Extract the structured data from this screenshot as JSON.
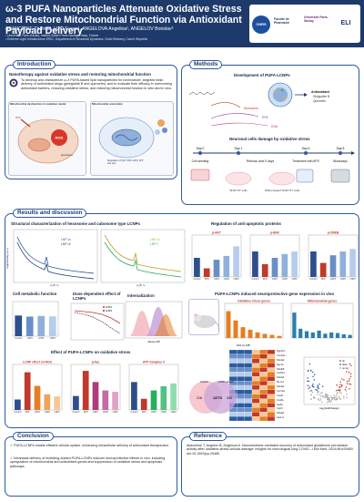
{
  "header": {
    "title": "ω-3 PUFA Nanoparticles Attenuate Oxidative Stress and Restore Mitochondrial Function via Antioxidant Payload Delivery",
    "authors": "AKANCHISE Thelma¹, LUO Fucen¹, ANGELOVA Angelina¹, ANGELOV Borislav²",
    "affiliation_1": "¹ Université Paris-Saclay, Institut Galien Paris-Saclay, Orsay, France",
    "affiliation_2": "² Extreme Light Infrastructure ERIC, Department of Structural Dynamics, Dolní Břežany, Czech Republic",
    "logos": [
      "CNRS",
      "Faculté de Pharmacie",
      "Université Paris-Saclay",
      "ELI"
    ]
  },
  "introduction": {
    "heading": "Introduction",
    "subheading": "Nanotherapy against oxidative stress and restoring mitochondrial function",
    "body": "To develop and characterize ω-3 PUFA-based lipid nanoparticles for noninvasive, targeted brain delivery of antioxidant drugs (ginkgolide B and quercetin), and to evaluate their efficacy in overcoming antioxidant barriers, reducing oxidative stress, and restoring mitochondrial function in vitro and in vivo.",
    "panel_left": "Mitochondria dysfunction in oxidative model",
    "panel_right": "Mitochondria restoration",
    "labels": [
      "ROS",
      "apoptosis",
      "Regulation of CAT, SOD, GPX, ATP and Gpx",
      "6PS"
    ]
  },
  "methods": {
    "heading": "Methods",
    "dev_title": "Development of PUFA-LCNPs",
    "components": [
      "Monoolein",
      "EPA",
      "DHA"
    ],
    "payload": [
      "Antioxidant",
      "Ginkgolide B",
      "Quercetin"
    ],
    "stress_title": "Neuronal cells damage by oxidative stress",
    "timeline_days": [
      "Day 0",
      "Day 1",
      "Day 6",
      "Day 8"
    ],
    "steps": [
      "Cell seeding",
      "Retinoic acid 5 days",
      "Treatment with 6PS",
      "Bioassays"
    ],
    "cell_labels": [
      "SHSY-5Y cells",
      "Differentiated SHSY-5Y cells"
    ]
  },
  "results": {
    "heading": "Results and discussion",
    "saxs_title": "Structural characterization of hexosome and cubosome type LCNPs",
    "saxs_legend_a": [
      "LNP 1a",
      "LNP 1b"
    ],
    "saxs_legend_b": [
      "LNP 1c",
      "LNP 2"
    ],
    "saxs_xlabel": "q (Å⁻¹)",
    "saxs_ylabel": "Log(Intensity) (a.u.)",
    "apoptotic_title": "Regulation of anti-apoptotic proteins",
    "apoptotic_panels": [
      "p-AKT",
      "p-ERK",
      "p-CREB"
    ],
    "apoptotic_ylabels": [
      "Relative AKT protein concentration",
      "Relative ERK protein concentration",
      "Relative CREB protein concentration"
    ],
    "metabolic_title": "Cell metabolic function",
    "metabolic_ylabel": "Cellular viability (%)",
    "dose_title": "Dose dependent effect of LCNPs",
    "dose_legend": [
      "LNP1",
      "LNP2"
    ],
    "dose_ylabel": "Cellular viability (%)",
    "internal_title": "Internalization",
    "internal_xlabel": "Alexa-LNP",
    "internal_ylabel": "Events",
    "gene_title": "PUFA-LCNPs induced neuroprotective gene expression in vivo",
    "gene_panels": [
      "Oxidative stress genes",
      "Mitochondrial genes"
    ],
    "gene_ylabel": "Log2 (Fold Change)",
    "heatmap_title": "Ctrl vs CIP",
    "heatmap_genes": [
      "Ngp1b1",
      "Cox4i1b",
      "Ndufa4",
      "Pgc1a",
      "Ndufb8",
      "Cox6b1",
      "Ndufa3",
      "Mt-co1",
      "Ndufa2",
      "Cox7a2",
      "Cox6c",
      "Cox8a",
      "Atp5e",
      "Uqcrh",
      "Ndufa1",
      "Atp1v1"
    ],
    "venn_labels": [
      "Control",
      "LCNP-treated"
    ],
    "venn_values": [
      "216",
      "13772",
      "343"
    ],
    "volcano_xlabel": "log₂(FoldChange)",
    "volcano_ylabel": "-log₁₀(p value)",
    "volcano_legend": [
      "up",
      "down",
      "no sig"
    ],
    "ros_title": "Effect of PUFA-LCNPs on oxidative stress",
    "ros_panels": [
      "LCNP effect on ROS",
      "p-tau",
      "ATP Complex V"
    ],
    "ros_ylabels": [
      "Relative fluorescence intensity",
      "Relative p-tau concentration",
      "Relative ATP Complex V"
    ]
  },
  "chart_data": [
    {
      "type": "bar",
      "title": "p-AKT",
      "categories": [
        "Control",
        "6PS",
        "LNP1",
        "LNP2",
        "LNP3"
      ],
      "values": [
        1.0,
        0.45,
        0.9,
        1.1,
        1.6
      ],
      "ylim": [
        0,
        2
      ],
      "colors": [
        "#2e4f8c",
        "#c0392b",
        "#6a8fc8",
        "#8fb0db",
        "#b5cdea"
      ]
    },
    {
      "type": "bar",
      "title": "p-ERK",
      "categories": [
        "Control",
        "6PS",
        "LNP1",
        "LNP2",
        "LNP3"
      ],
      "values": [
        1.0,
        0.5,
        0.75,
        0.9,
        1.0
      ],
      "ylim": [
        0,
        1.5
      ],
      "colors": [
        "#2e4f8c",
        "#c0392b",
        "#6a8fc8",
        "#8fb0db",
        "#b5cdea"
      ]
    },
    {
      "type": "bar",
      "title": "p-CREB",
      "categories": [
        "Control",
        "6PS",
        "LNP1",
        "LNP2",
        "LNP3"
      ],
      "values": [
        1.0,
        0.55,
        0.85,
        1.0,
        1.1
      ],
      "ylim": [
        0,
        1.5
      ],
      "colors": [
        "#2e4f8c",
        "#c0392b",
        "#6a8fc8",
        "#8fb0db",
        "#b5cdea"
      ]
    },
    {
      "type": "bar",
      "title": "Cell metabolic function",
      "categories": [
        "Control",
        "LNP1",
        "LNP2",
        "LNP3"
      ],
      "values": [
        100,
        95,
        98,
        96
      ],
      "ylim": [
        0,
        150
      ],
      "colors": [
        "#2e4f8c",
        "#6a8fc8",
        "#8fb0db",
        "#b5cdea"
      ]
    },
    {
      "type": "bar",
      "title": "LCNP effect on ROS",
      "categories": [
        "Control",
        "6PS",
        "LNP1",
        "LNP2",
        "LNP3"
      ],
      "values": [
        1.0,
        3.6,
        2.3,
        1.5,
        1.3
      ],
      "ylim": [
        0,
        4
      ],
      "colors": [
        "#2e4f8c",
        "#c0392b",
        "#e67e22",
        "#f0a35c",
        "#f6c795"
      ]
    },
    {
      "type": "bar",
      "title": "p-tau",
      "categories": [
        "Control",
        "6PS",
        "LNP1",
        "LNP2",
        "LNP3"
      ],
      "values": [
        1.0,
        2.8,
        2.0,
        1.4,
        1.3
      ],
      "ylim": [
        0,
        3
      ],
      "colors": [
        "#2e4f8c",
        "#c0392b",
        "#b03a7a",
        "#c76aa0",
        "#dfa3c5"
      ]
    },
    {
      "type": "bar",
      "title": "ATP Complex V",
      "categories": [
        "Control",
        "6PS",
        "LNP1",
        "LNP2",
        "LNP3"
      ],
      "values": [
        1.0,
        0.4,
        0.7,
        0.85,
        0.95
      ],
      "ylim": [
        0,
        1.5
      ],
      "colors": [
        "#2e4f8c",
        "#c0392b",
        "#27ae60",
        "#52c282",
        "#8fdcae"
      ]
    },
    {
      "type": "bar",
      "title": "Oxidative stress genes",
      "categories": [
        "g1",
        "g2",
        "g3",
        "g4",
        "g5",
        "g6",
        "g7",
        "g8"
      ],
      "values": [
        5.2,
        3.4,
        2.1,
        1.6,
        1.1,
        0.8,
        0.6,
        0.4
      ],
      "ylim": [
        0,
        6
      ]
    },
    {
      "type": "bar",
      "title": "Mitochondrial genes",
      "categories": [
        "g1",
        "g2",
        "g3",
        "g4",
        "g5",
        "g6",
        "g7",
        "g8",
        "g9",
        "g10"
      ],
      "values": [
        4.1,
        1.5,
        1.1,
        0.9,
        1.2,
        0.7,
        0.9,
        0.8,
        0.6,
        0.5
      ],
      "ylim": [
        0,
        5
      ]
    }
  ],
  "conclusion": {
    "heading": "Conclusion",
    "points": [
      "PUFA-LCNPs enable efficient cellular uptake, enhancing intracellular delivery of antioxidant therapeutics.",
      "Intranasal delivery of multidrug-loaded PUFA-LCNPs induces neuroprotective effects in vivo, including upregulation of mitochondrial and antioxidant genes and suppression of oxidative stress and apoptosis pathways."
    ]
  },
  "reference": {
    "heading": "Reference",
    "text": "Akanchise T, Angelov B, Angelova A. Nanomedicine-mediated recovery of antioxidant glutathione peroxidase activity after oxidative-stress cellular damage: insights for neurological long COVID. J Mol Med. 2024;96:e29480. doi:10.1002/jcp.29480"
  },
  "colors": {
    "navy": "#1e3a6b",
    "accent": "#2a5aa0",
    "red": "#c0392b"
  }
}
